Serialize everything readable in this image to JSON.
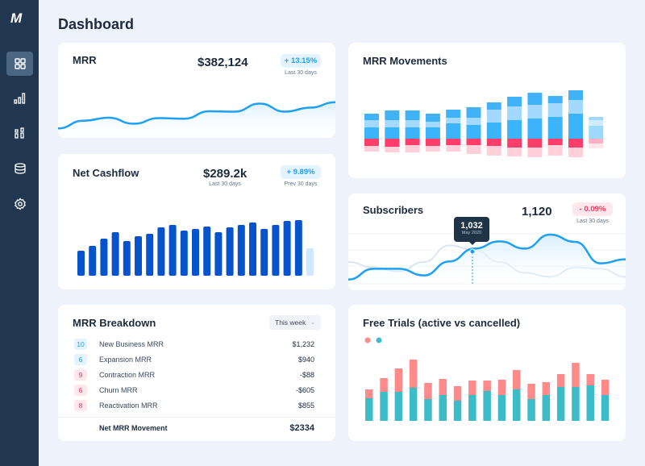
{
  "sidebar": {
    "logo": "M",
    "items": [
      {
        "icon": "grid-icon",
        "active": true
      },
      {
        "icon": "bar-chart-icon"
      },
      {
        "icon": "chart-alt-icon"
      },
      {
        "icon": "database-icon"
      },
      {
        "icon": "gear-icon"
      }
    ]
  },
  "header": {
    "title": "Dashboard"
  },
  "colors": {
    "blue": "#1ea0f5",
    "red": "#f5375f",
    "navy": "#213750",
    "cash": "#0753cc",
    "trial_active": "#3bbcc6",
    "trial_cancelled": "#ff8a8a"
  },
  "mrr": {
    "title": "MRR",
    "value": "$382,124",
    "badge": "+ 13.15%",
    "badge_sub": "Last 30 days",
    "line": [
      47,
      85,
      100,
      70,
      98,
      95,
      132,
      130,
      170,
      130,
      150,
      177
    ]
  },
  "cashflow": {
    "title": "Net Cashflow",
    "value": "$289.2k",
    "value_sub": "Last 30 days",
    "badge": "+ 9.89%",
    "badge_sub": "Prev 30 days",
    "bars": [
      31,
      37,
      46,
      54,
      43,
      49,
      52,
      60,
      63,
      56,
      58,
      61,
      54,
      60,
      63,
      66,
      58,
      63,
      68,
      69,
      34
    ]
  },
  "breakdown": {
    "title": "MRR Breakdown",
    "period": "This week",
    "rows": [
      {
        "count": "10",
        "label": "New Business MRR",
        "value": "$1,232",
        "tone": "b"
      },
      {
        "count": "6",
        "label": "Expansion MRR",
        "value": "$940",
        "tone": "b"
      },
      {
        "count": "9",
        "label": "Contraction MRR",
        "value": "-$88",
        "tone": "r"
      },
      {
        "count": "6",
        "label": "Churn MRR",
        "value": "-$605",
        "tone": "r"
      },
      {
        "count": "8",
        "label": "Reactivation MRR",
        "value": "$855",
        "tone": "r"
      }
    ],
    "total_label": "Net MRR Movement",
    "total_value": "$2334"
  },
  "movements": {
    "title": "MRR Movements",
    "bars": [
      [
        14,
        9,
        8,
        9,
        7
      ],
      [
        14,
        9,
        12,
        10,
        7
      ],
      [
        14,
        9,
        12,
        8,
        9
      ],
      [
        14,
        7,
        10,
        9,
        7
      ],
      [
        19,
        7,
        10,
        8,
        8
      ],
      [
        17,
        9,
        13,
        8,
        11
      ],
      [
        20,
        16,
        9,
        9,
        12
      ],
      [
        23,
        17,
        12,
        11,
        11
      ],
      [
        25,
        17,
        15,
        11,
        12
      ],
      [
        27,
        17,
        9,
        8,
        13
      ],
      [
        31,
        17,
        12,
        11,
        12
      ],
      [
        16,
        7,
        4,
        6,
        6
      ]
    ]
  },
  "subscribers": {
    "title": "Subscribers",
    "value": "1,120",
    "badge": "- 0.09%",
    "badge_sub": "Last 30 days",
    "tooltip_value": "1,032",
    "tooltip_date": "May 2020",
    "line": [
      55,
      95,
      95,
      70,
      122,
      170,
      197,
      170,
      222,
      195,
      115,
      130
    ],
    "previous": [
      120,
      100,
      85,
      120,
      182,
      165,
      120,
      80,
      65,
      100,
      95,
      65
    ]
  },
  "trials": {
    "title": "Free Trials (active vs cancelled)",
    "active": [
      28,
      36,
      36,
      41,
      27,
      32,
      25,
      32,
      37,
      32,
      39,
      27,
      32,
      42,
      42,
      44,
      32
    ],
    "cancelled": [
      11,
      17,
      29,
      35,
      20,
      20,
      18,
      18,
      13,
      19,
      24,
      19,
      16,
      16,
      30,
      14,
      19
    ]
  }
}
